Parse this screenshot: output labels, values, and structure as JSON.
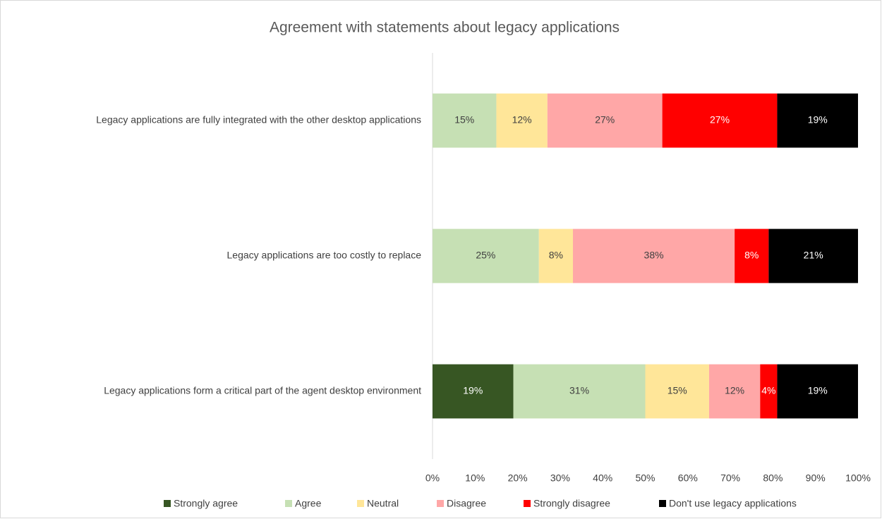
{
  "chart_data": {
    "type": "stacked_barh",
    "title": "Agreement with statements about legacy applications",
    "categories": [
      "Legacy applications are fully integrated with the other desktop applications",
      "Legacy applications are too costly to replace",
      "Legacy applications form a critical part of the agent desktop environment"
    ],
    "series": [
      {
        "name": "Strongly agree",
        "color": "#375623",
        "values": [
          0,
          0,
          19
        ],
        "value_labels": [
          null,
          null,
          "19%"
        ]
      },
      {
        "name": "Agree",
        "color": "#c6e0b4",
        "values": [
          15,
          25,
          31
        ],
        "value_labels": [
          "15%",
          "25%",
          "31%"
        ]
      },
      {
        "name": "Neutral",
        "color": "#ffe699",
        "values": [
          12,
          8,
          15
        ],
        "value_labels": [
          "12%",
          "8%",
          "15%"
        ]
      },
      {
        "name": "Disagree",
        "color": "#ffa7a7",
        "values": [
          27,
          38,
          12
        ],
        "value_labels": [
          "27%",
          "38%",
          "12%"
        ]
      },
      {
        "name": "Strongly disagree",
        "color": "#ff0000",
        "values": [
          27,
          8,
          4
        ],
        "value_labels": [
          "27%",
          "8%",
          "4%"
        ]
      },
      {
        "name": "Don't use legacy applications",
        "color": "#000000",
        "values": [
          19,
          21,
          19
        ],
        "value_labels": [
          "19%",
          "21%",
          "19%"
        ]
      }
    ],
    "xlim": [
      0,
      100
    ],
    "xticks": [
      {
        "value": 0,
        "label": "0%"
      },
      {
        "value": 10,
        "label": "10%"
      },
      {
        "value": 20,
        "label": "20%"
      },
      {
        "value": 30,
        "label": "30%"
      },
      {
        "value": 40,
        "label": "40%"
      },
      {
        "value": 50,
        "label": "50%"
      },
      {
        "value": 60,
        "label": "60%"
      },
      {
        "value": 70,
        "label": "70%"
      },
      {
        "value": 80,
        "label": "80%"
      },
      {
        "value": 90,
        "label": "90%"
      },
      {
        "value": 100,
        "label": "100%"
      }
    ],
    "legend": "bottom"
  }
}
